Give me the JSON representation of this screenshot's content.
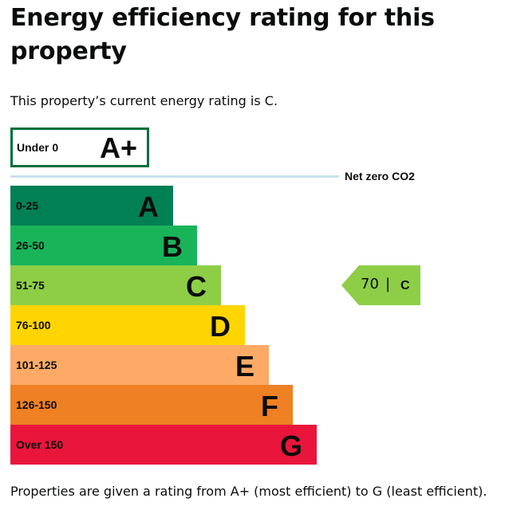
{
  "title": "Energy efficiency rating for this property",
  "current_rating_text": "This property’s current energy rating is C.",
  "footer_text": "Properties are given a rating from A+ (most efficient) to G (least efficient).",
  "aplus": {
    "range": "Under 0",
    "letter": "A+",
    "border_color": "#00703c"
  },
  "net_zero_label": "Net zero CO2",
  "net_zero_line_color": "#c7e2ea",
  "bands": [
    {
      "range": "0-25",
      "letter": "A",
      "color": "#008054"
    },
    {
      "range": "26-50",
      "letter": "B",
      "color": "#19b459"
    },
    {
      "range": "51-75",
      "letter": "C",
      "color": "#8dce46"
    },
    {
      "range": "76-100",
      "letter": "D",
      "color": "#ffd500"
    },
    {
      "range": "101-125",
      "letter": "E",
      "color": "#fcaa65"
    },
    {
      "range": "126-150",
      "letter": "F",
      "color": "#ef8023"
    },
    {
      "range": "Over 150",
      "letter": "G",
      "color": "#e9153b"
    }
  ],
  "current": {
    "score": "70",
    "separator": "|",
    "letter": "C",
    "color": "#8dce46"
  }
}
